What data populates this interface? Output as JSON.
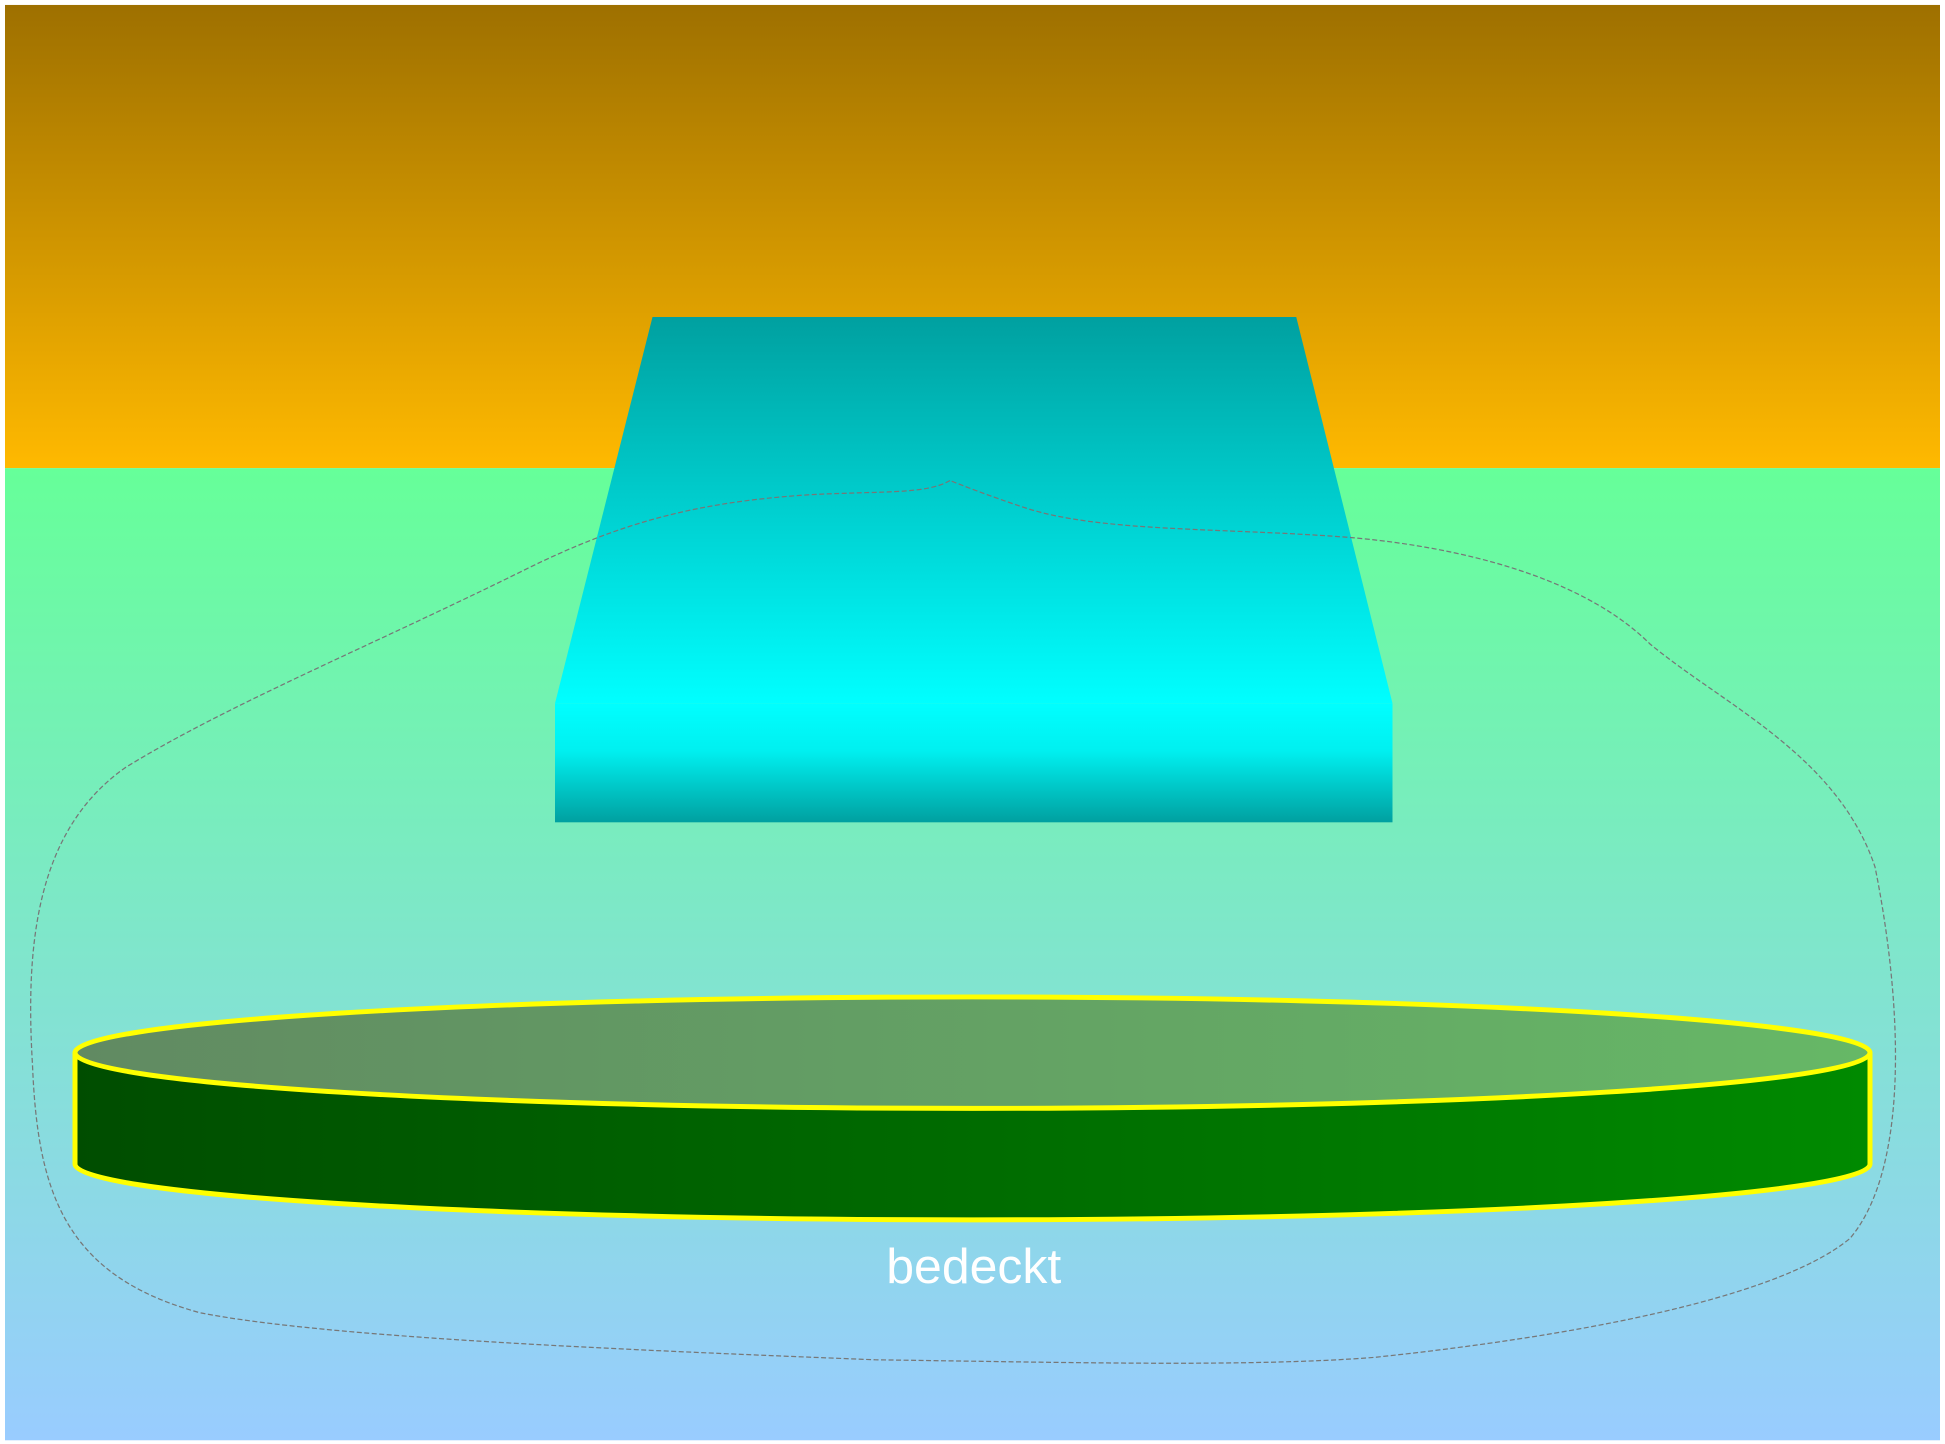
{
  "label": "bedeckt"
}
